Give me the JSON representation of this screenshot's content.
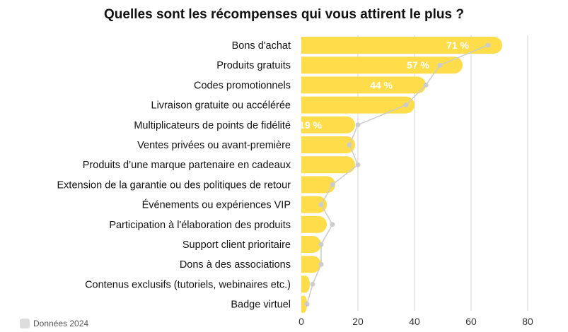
{
  "chart_data": {
    "type": "bar",
    "orientation": "horizontal",
    "title": "Quelles sont les récompenses qui vous attirent le plus ?",
    "categories": [
      "Bons d'achat",
      "Produits gratuits",
      "Codes promotionnels",
      "Livraison gratuite ou accélérée",
      "Multiplicateurs de points de fidélité",
      "Ventes privées ou avant-première",
      "Produits d’une marque partenaire en cadeaux",
      "Extension de la garantie ou des politiques de retour",
      "Événements ou expériences VIP",
      "Participation à l'élaboration des produits",
      "Support client prioritaire",
      "Dons à des associations",
      "Contenus exclusifs (tutoriels, webinaires etc.)",
      "Badge virtuel"
    ],
    "series": [
      {
        "values": [
          71,
          57,
          44,
          40,
          19,
          19,
          19,
          12,
          9,
          9,
          7,
          7,
          3,
          2
        ],
        "color": "#FFDD4A",
        "data_labels": [
          "71 %",
          "57 %",
          "44 %",
          "",
          "19 %",
          "",
          "",
          "",
          "",
          "",
          "",
          "",
          "",
          ""
        ]
      },
      {
        "name": "Données 2024",
        "values": [
          66,
          49,
          44,
          37,
          20,
          17,
          20,
          11,
          7,
          11,
          7,
          7,
          4,
          2
        ],
        "color": "#cccccc"
      }
    ],
    "xlim": [
      0,
      80
    ],
    "xticks": [
      "0",
      "20",
      "40",
      "60",
      "80"
    ],
    "grid": true,
    "legend_position": "bottom-left"
  },
  "colors": {
    "bar": "#FFDD4A",
    "comparison": "#cccccc",
    "grid": "#d4d4d4",
    "text": "#111111"
  }
}
